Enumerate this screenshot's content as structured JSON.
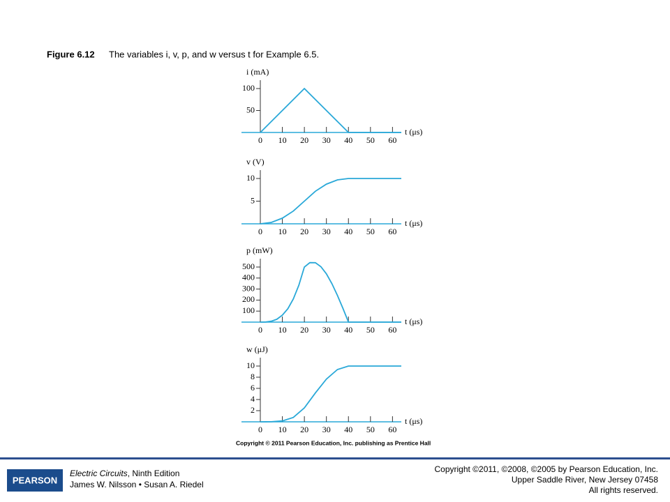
{
  "caption": {
    "label": "Figure 6.12",
    "text": "The variables i, v, p, and w versus t for Example 6.5."
  },
  "copyright_line": "Copyright © 2011 Pearson Education, Inc. publishing as Prentice Hall",
  "footer": {
    "logo": "PEARSON",
    "book_title": "Electric Circuits",
    "edition": ", Ninth Edition",
    "authors": "James W. Nilsson • Susan A. Riedel",
    "rights": [
      "Copyright ©2011, ©2008, ©2005 by Pearson Education, Inc.",
      "Upper Saddle River, New Jersey 07458",
      "All rights reserved."
    ]
  },
  "chart_data": [
    {
      "type": "line",
      "y_label": "i (mA)",
      "x_label": "t (μs)",
      "color": "#29a8d8",
      "x": [
        0,
        20,
        40,
        64
      ],
      "values": [
        0,
        100,
        0,
        0
      ],
      "xlim": [
        0,
        64
      ],
      "xticks": [
        0,
        10,
        20,
        30,
        40,
        50,
        60
      ],
      "ylim": [
        0,
        100
      ],
      "yticks": [
        50,
        100
      ]
    },
    {
      "type": "line",
      "y_label": "v (V)",
      "x_label": "t (μs)",
      "color": "#29a8d8",
      "x": [
        0,
        5,
        10,
        15,
        20,
        25,
        30,
        35,
        40,
        64
      ],
      "values": [
        0,
        0.31,
        1.25,
        2.81,
        5,
        7.19,
        8.75,
        9.69,
        10,
        10
      ],
      "xlim": [
        0,
        64
      ],
      "xticks": [
        0,
        10,
        20,
        30,
        40,
        50,
        60
      ],
      "ylim": [
        0,
        10
      ],
      "yticks": [
        5,
        10
      ]
    },
    {
      "type": "line",
      "y_label": "p (mW)",
      "x_label": "t (μs)",
      "color": "#29a8d8",
      "x": [
        0,
        2.5,
        5,
        7.5,
        10,
        12.5,
        15,
        17.5,
        20,
        22.5,
        25,
        27.5,
        30,
        32.5,
        35,
        37.5,
        40,
        64
      ],
      "values": [
        0,
        1,
        8,
        26,
        63,
        122,
        211,
        335,
        500,
        540,
        539,
        503,
        438,
        349,
        242,
        124,
        0,
        0
      ],
      "xlim": [
        0,
        64
      ],
      "xticks": [
        0,
        10,
        20,
        30,
        40,
        50,
        60
      ],
      "ylim": [
        0,
        500
      ],
      "yticks": [
        100,
        200,
        300,
        400,
        500
      ]
    },
    {
      "type": "line",
      "y_label": "w (μJ)",
      "x_label": "t (μs)",
      "color": "#29a8d8",
      "x": [
        0,
        5,
        10,
        15,
        20,
        25,
        30,
        35,
        40,
        64
      ],
      "values": [
        0,
        0.01,
        0.16,
        0.79,
        2.5,
        5.17,
        7.66,
        9.38,
        10,
        10
      ],
      "xlim": [
        0,
        64
      ],
      "xticks": [
        0,
        10,
        20,
        30,
        40,
        50,
        60
      ],
      "ylim": [
        0,
        10
      ],
      "yticks": [
        2,
        4,
        6,
        8,
        10
      ]
    }
  ]
}
